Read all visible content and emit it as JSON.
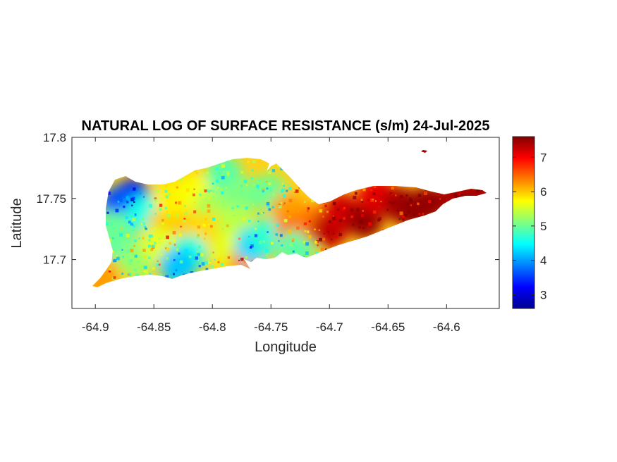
{
  "chart_data": {
    "type": "heatmap",
    "title": "NATURAL LOG OF SURFACE RESISTANCE (s/m) 24-Jul-2025",
    "xlabel": "Longitude",
    "ylabel": "Latitude",
    "xlim": [
      -64.92,
      -64.555
    ],
    "ylim": [
      17.66,
      17.8
    ],
    "x_ticks": [
      -64.9,
      -64.85,
      -64.8,
      -64.75,
      -64.7,
      -64.65,
      -64.6
    ],
    "x_tick_labels": [
      "-64.9",
      "-64.85",
      "-64.8",
      "-64.75",
      "-64.7",
      "-64.65",
      "-64.6"
    ],
    "y_ticks": [
      17.7,
      17.75,
      17.8
    ],
    "y_tick_labels": [
      "17.7",
      "17.75",
      "17.8"
    ],
    "colorbar": {
      "colormap": "jet",
      "range": [
        2.6,
        7.6
      ],
      "ticks": [
        3,
        4,
        5,
        6,
        7
      ],
      "tick_labels": [
        "3",
        "4",
        "5",
        "6",
        "7"
      ]
    },
    "grid": false,
    "regions": [
      {
        "lon": -64.868,
        "lat": 17.751,
        "value": 3.2
      },
      {
        "lon": -64.88,
        "lat": 17.745,
        "value": 3.6
      },
      {
        "lon": -64.858,
        "lat": 17.738,
        "value": 4.6
      },
      {
        "lon": -64.88,
        "lat": 17.715,
        "value": 4.8
      },
      {
        "lon": -64.885,
        "lat": 17.725,
        "value": 5.0
      },
      {
        "lon": -64.865,
        "lat": 17.7,
        "value": 5.2
      },
      {
        "lon": -64.895,
        "lat": 17.685,
        "value": 6.2
      },
      {
        "lon": -64.84,
        "lat": 17.728,
        "value": 6.0
      },
      {
        "lon": -64.845,
        "lat": 17.712,
        "value": 5.6
      },
      {
        "lon": -64.835,
        "lat": 17.75,
        "value": 5.8
      },
      {
        "lon": -64.815,
        "lat": 17.755,
        "value": 5.7
      },
      {
        "lon": -64.8,
        "lat": 17.742,
        "value": 5.3
      },
      {
        "lon": -64.805,
        "lat": 17.725,
        "value": 5.9
      },
      {
        "lon": -64.82,
        "lat": 17.705,
        "value": 4.6
      },
      {
        "lon": -64.83,
        "lat": 17.695,
        "value": 4.2
      },
      {
        "lon": -64.79,
        "lat": 17.77,
        "value": 4.9
      },
      {
        "lon": -64.775,
        "lat": 17.752,
        "value": 5.1
      },
      {
        "lon": -64.78,
        "lat": 17.728,
        "value": 5.4
      },
      {
        "lon": -64.785,
        "lat": 17.708,
        "value": 5.6
      },
      {
        "lon": -64.77,
        "lat": 17.698,
        "value": 6.3
      },
      {
        "lon": -64.765,
        "lat": 17.712,
        "value": 4.3
      },
      {
        "lon": -64.752,
        "lat": 17.72,
        "value": 4.7
      },
      {
        "lon": -64.752,
        "lat": 17.755,
        "value": 5.0
      },
      {
        "lon": -64.735,
        "lat": 17.74,
        "value": 6.2
      },
      {
        "lon": -64.73,
        "lat": 17.72,
        "value": 6.5
      },
      {
        "lon": -64.728,
        "lat": 17.71,
        "value": 4.9
      },
      {
        "lon": -64.712,
        "lat": 17.73,
        "value": 6.4
      },
      {
        "lon": -64.7,
        "lat": 17.724,
        "value": 7.3
      },
      {
        "lon": -64.69,
        "lat": 17.74,
        "value": 7.2
      },
      {
        "lon": -64.67,
        "lat": 17.732,
        "value": 7.5
      },
      {
        "lon": -64.66,
        "lat": 17.753,
        "value": 7.1
      },
      {
        "lon": -64.64,
        "lat": 17.745,
        "value": 7.4
      },
      {
        "lon": -64.628,
        "lat": 17.74,
        "value": 7.5
      },
      {
        "lon": -64.615,
        "lat": 17.746,
        "value": 7.5
      },
      {
        "lon": -64.59,
        "lat": 17.751,
        "value": 7.4
      },
      {
        "lon": -64.57,
        "lat": 17.754,
        "value": 7.4
      },
      {
        "lon": -64.623,
        "lat": 17.788,
        "value": 7.5
      }
    ]
  }
}
